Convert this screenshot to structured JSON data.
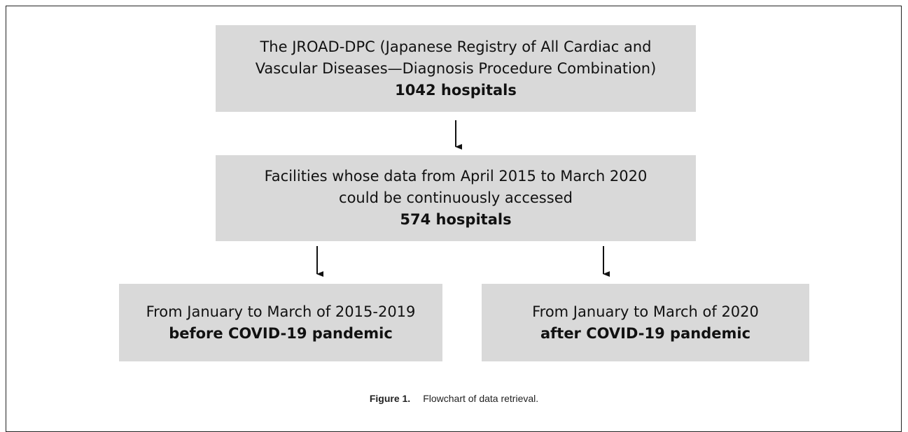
{
  "nodes": [
    {
      "lines": [
        "The JROAD-DPC (Japanese Registry of All Cardiac and",
        "Vascular Diseases—Diagnosis Procedure Combination)"
      ],
      "count": "1042 hospitals"
    },
    {
      "lines": [
        "Facilities whose data from April 2015 to March 2020",
        "could be continuously accessed"
      ],
      "count": "574 hospitals"
    },
    {
      "lines": [
        "From January to March of 2015-2019"
      ],
      "count": "before COVID-19 pandemic"
    },
    {
      "lines": [
        "From January to March of 2020"
      ],
      "count": "after COVID-19 pandemic"
    }
  ],
  "caption": {
    "label": "Figure 1.",
    "text": "Flowchart of data retrieval."
  }
}
